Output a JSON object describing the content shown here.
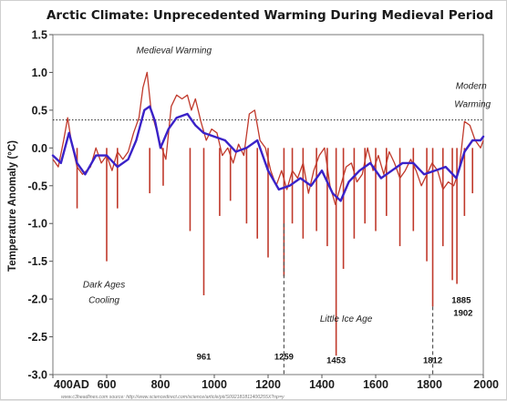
{
  "chart_data": {
    "type": "line",
    "title": "Arctic Climate: Unprecedented Warming During Medieval Period",
    "ylabel": "Temperature Anomaly (°C)",
    "xlabel": "",
    "xlim": [
      400,
      2000
    ],
    "ylim": [
      -3.0,
      1.5
    ],
    "x_tick_labels": [
      "400AD",
      "600",
      "800",
      "1000",
      "1200",
      "1400",
      "1600",
      "1800",
      "2000"
    ],
    "x_tick_values": [
      400,
      600,
      800,
      1000,
      1200,
      1400,
      1600,
      1800,
      2000
    ],
    "y_ticks": [
      1.5,
      1.0,
      0.5,
      0.0,
      -0.5,
      -1.0,
      -1.5,
      -2.0,
      -2.5,
      -3.0
    ],
    "y_tick_labels": [
      "1.5",
      "1.0",
      "0.5",
      "0.0",
      "-0.5",
      "-1.0",
      "-1.5",
      "-2.0",
      "-2.5",
      "-3.0"
    ],
    "reference_line": {
      "y": 0.37,
      "style": "dotted"
    },
    "colors": {
      "raw": "#c0392b",
      "smoothed": "#3a22c8",
      "reference": "#222222"
    },
    "series": [
      {
        "values_kind": "raw",
        "x": [
          400,
          420,
          440,
          455,
          470,
          490,
          510,
          525,
          540,
          560,
          580,
          600,
          620,
          640,
          660,
          680,
          700,
          720,
          735,
          750,
          765,
          780,
          800,
          820,
          840,
          860,
          880,
          900,
          915,
          930,
          950,
          970,
          990,
          1010,
          1030,
          1050,
          1070,
          1090,
          1110,
          1130,
          1150,
          1170,
          1190,
          1210,
          1230,
          1250,
          1270,
          1290,
          1310,
          1330,
          1350,
          1370,
          1390,
          1410,
          1430,
          1450,
          1470,
          1490,
          1510,
          1530,
          1550,
          1570,
          1590,
          1610,
          1630,
          1650,
          1670,
          1690,
          1710,
          1730,
          1750,
          1770,
          1790,
          1810,
          1830,
          1850,
          1870,
          1890,
          1910,
          1930,
          1950,
          1970,
          1990,
          2000
        ],
        "y": [
          -0.15,
          -0.25,
          0.1,
          0.4,
          0.05,
          -0.25,
          -0.35,
          -0.3,
          -0.25,
          0.0,
          -0.2,
          -0.1,
          -0.3,
          -0.05,
          -0.15,
          -0.05,
          0.2,
          0.4,
          0.8,
          1.0,
          0.5,
          0.3,
          0.05,
          -0.15,
          0.55,
          0.7,
          0.65,
          0.7,
          0.5,
          0.65,
          0.35,
          0.1,
          0.25,
          0.2,
          -0.1,
          0.0,
          -0.2,
          0.05,
          -0.1,
          0.45,
          0.5,
          0.1,
          0.0,
          -0.3,
          -0.5,
          -0.3,
          -0.55,
          -0.3,
          -0.4,
          -0.2,
          -0.6,
          -0.3,
          -0.1,
          0.0,
          -0.5,
          -0.75,
          -0.5,
          -0.25,
          -0.2,
          -0.45,
          -0.35,
          0.0,
          -0.3,
          -0.1,
          -0.35,
          -0.05,
          -0.2,
          -0.4,
          -0.3,
          -0.15,
          -0.3,
          -0.5,
          -0.35,
          -0.2,
          -0.3,
          -0.55,
          -0.45,
          -0.5,
          -0.3,
          0.35,
          0.3,
          0.1,
          0.0,
          0.1
        ]
      },
      {
        "values_kind": "smoothed",
        "x": [
          400,
          430,
          460,
          490,
          520,
          560,
          600,
          640,
          680,
          710,
          740,
          760,
          780,
          800,
          830,
          860,
          900,
          930,
          960,
          1000,
          1040,
          1080,
          1120,
          1160,
          1200,
          1240,
          1280,
          1320,
          1360,
          1400,
          1440,
          1470,
          1500,
          1540,
          1580,
          1620,
          1660,
          1700,
          1740,
          1780,
          1820,
          1860,
          1900,
          1930,
          1960,
          1990,
          2000
        ],
        "y": [
          -0.1,
          -0.2,
          0.2,
          -0.2,
          -0.35,
          -0.1,
          -0.1,
          -0.25,
          -0.15,
          0.1,
          0.5,
          0.55,
          0.35,
          0.0,
          0.25,
          0.4,
          0.45,
          0.3,
          0.2,
          0.15,
          0.1,
          -0.05,
          0.0,
          0.1,
          -0.3,
          -0.55,
          -0.5,
          -0.4,
          -0.5,
          -0.3,
          -0.6,
          -0.7,
          -0.45,
          -0.3,
          -0.2,
          -0.4,
          -0.3,
          -0.2,
          -0.2,
          -0.35,
          -0.3,
          -0.25,
          -0.4,
          -0.05,
          0.1,
          0.1,
          0.15
        ]
      }
    ],
    "spikes": [
      {
        "x": 490,
        "y": -0.8
      },
      {
        "x": 600,
        "y": -1.5
      },
      {
        "x": 640,
        "y": -0.8
      },
      {
        "x": 760,
        "y": -0.6
      },
      {
        "x": 810,
        "y": -0.5
      },
      {
        "x": 910,
        "y": -1.1
      },
      {
        "x": 961,
        "y": -1.95
      },
      {
        "x": 1020,
        "y": -0.9
      },
      {
        "x": 1060,
        "y": -0.7
      },
      {
        "x": 1120,
        "y": -1.0
      },
      {
        "x": 1160,
        "y": -1.2
      },
      {
        "x": 1200,
        "y": -1.45
      },
      {
        "x": 1259,
        "y": -1.7
      },
      {
        "x": 1290,
        "y": -1.0
      },
      {
        "x": 1330,
        "y": -1.2
      },
      {
        "x": 1380,
        "y": -1.1
      },
      {
        "x": 1420,
        "y": -1.3
      },
      {
        "x": 1453,
        "y": -2.75
      },
      {
        "x": 1480,
        "y": -1.6
      },
      {
        "x": 1520,
        "y": -1.2
      },
      {
        "x": 1560,
        "y": -1.0
      },
      {
        "x": 1600,
        "y": -1.1
      },
      {
        "x": 1640,
        "y": -0.9
      },
      {
        "x": 1690,
        "y": -1.3
      },
      {
        "x": 1740,
        "y": -1.1
      },
      {
        "x": 1790,
        "y": -1.5
      },
      {
        "x": 1812,
        "y": -2.1
      },
      {
        "x": 1850,
        "y": -1.3
      },
      {
        "x": 1885,
        "y": -1.75
      },
      {
        "x": 1902,
        "y": -1.8
      },
      {
        "x": 1930,
        "y": -0.9
      },
      {
        "x": 1960,
        "y": -0.6
      }
    ],
    "event_markers": [
      {
        "x": 1259,
        "from": -1.0,
        "to": -3.0
      },
      {
        "x": 1812,
        "from": -2.1,
        "to": -3.0
      }
    ],
    "annotations": [
      {
        "text": "Medieval Warming",
        "x": 850,
        "y": 1.25
      },
      {
        "text": "Modern",
        "x": 1955,
        "y": 0.78
      },
      {
        "text": "Warming",
        "x": 1960,
        "y": 0.54
      },
      {
        "text": "Dark Ages",
        "x": 590,
        "y": -1.85
      },
      {
        "text": "Cooling",
        "x": 590,
        "y": -2.05
      },
      {
        "text": "Little Ice Age",
        "x": 1490,
        "y": -2.3
      },
      {
        "text": "961",
        "x": 961,
        "y": -2.8,
        "year": true
      },
      {
        "text": "1259",
        "x": 1259,
        "y": -2.8,
        "year": true
      },
      {
        "text": "1453",
        "x": 1453,
        "y": -2.85,
        "year": true
      },
      {
        "text": "1812",
        "x": 1812,
        "y": -2.85,
        "year": true
      },
      {
        "text": "1885",
        "x": 1918,
        "y": -2.05,
        "year": true
      },
      {
        "text": "1902",
        "x": 1925,
        "y": -2.22,
        "year": true
      }
    ]
  },
  "source_text": "www.c3headlines.com source: http://www.sciencedirect.com/science/article/pii/S092181811400255X?np=y"
}
